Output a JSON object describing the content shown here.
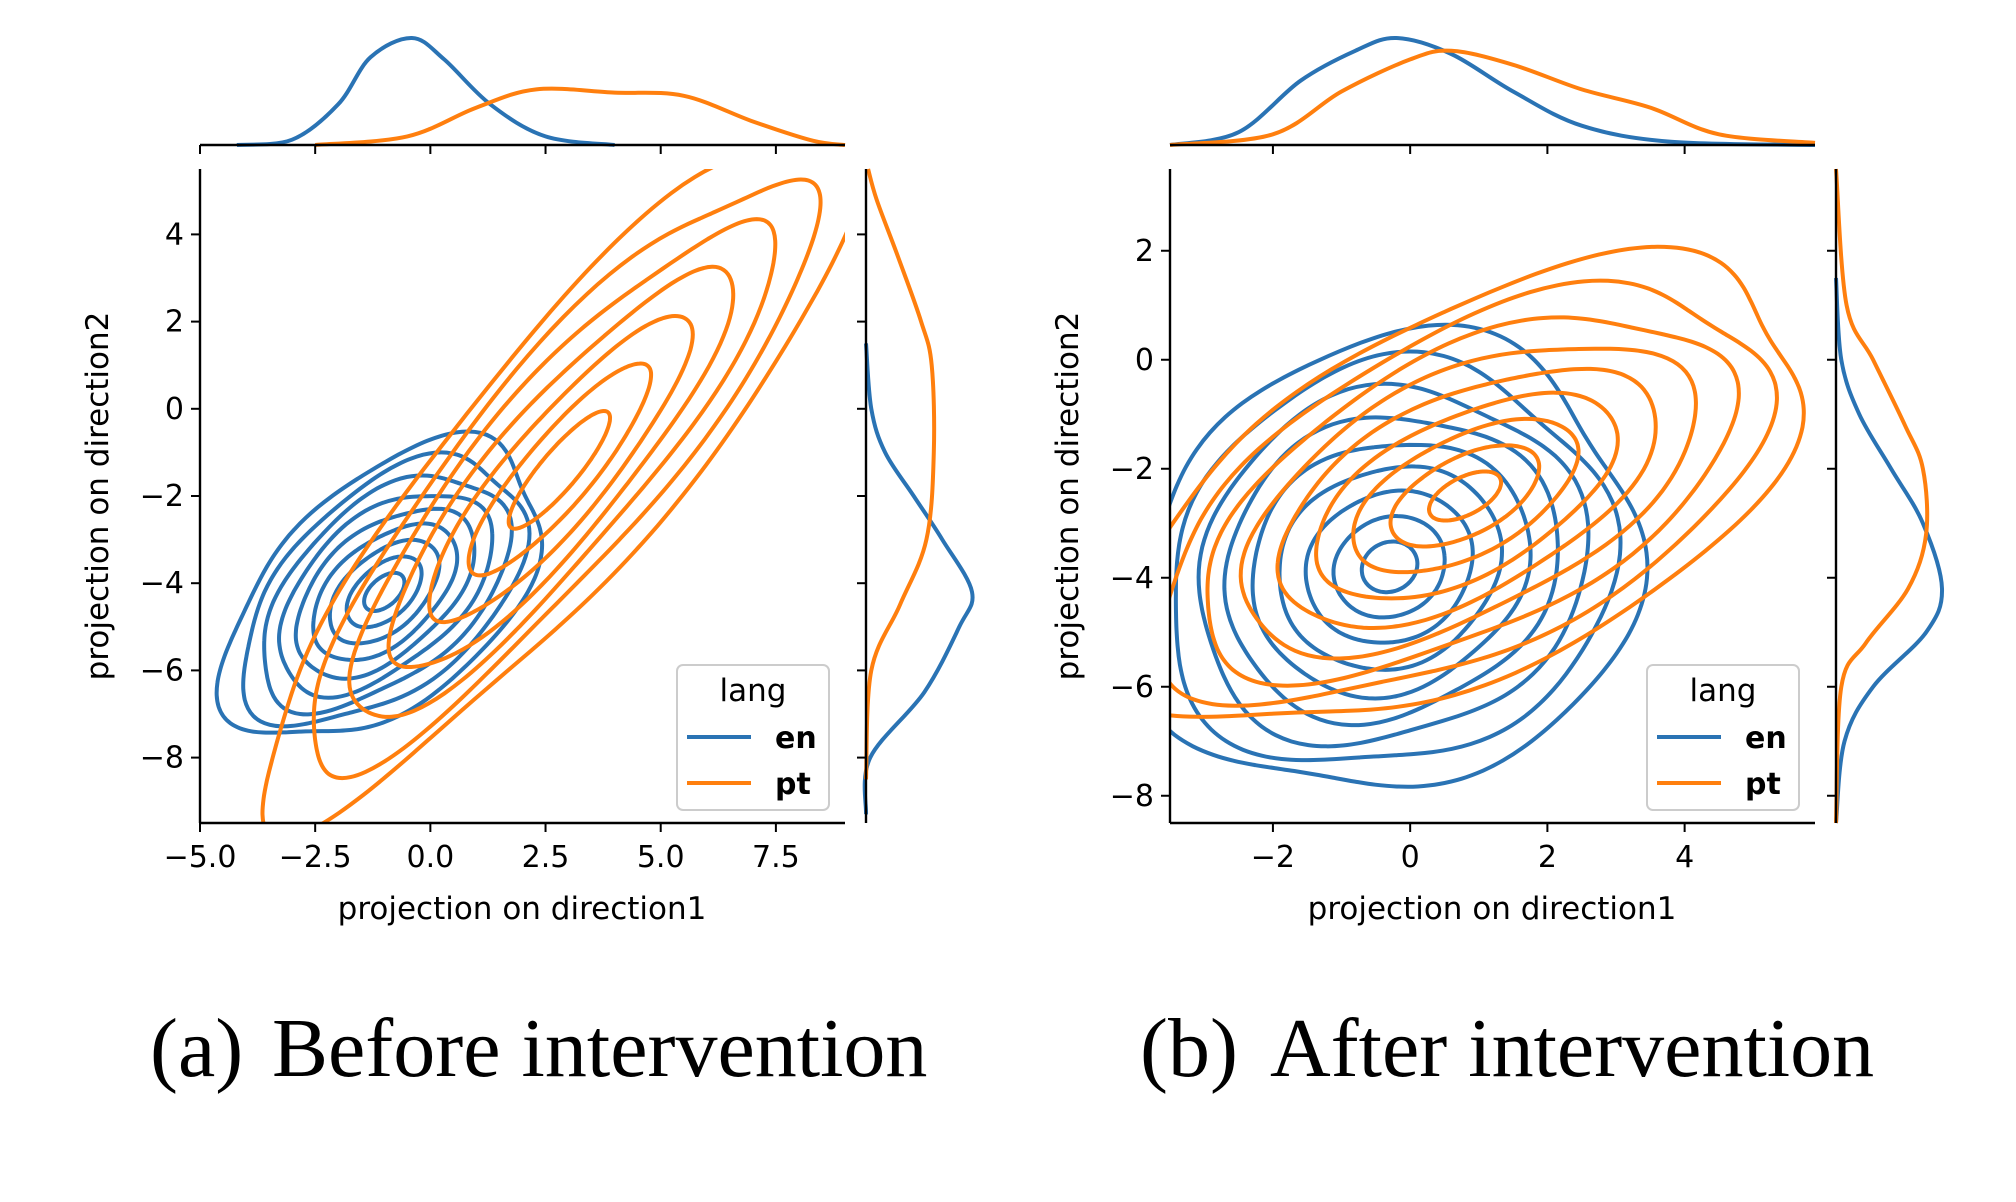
{
  "colors": {
    "en": "#2a73b4",
    "pt": "#ff7f0e"
  },
  "chart_data": [
    {
      "type": "contour",
      "caption_label": "(a)",
      "caption_text": "Before intervention",
      "xlabel": "projection on direction1",
      "ylabel": "projection on direction2",
      "xlim": [
        -5.0,
        9.0
      ],
      "ylim": [
        -9.5,
        5.5
      ],
      "xticks": [
        -5.0,
        -2.5,
        0.0,
        2.5,
        5.0,
        7.5
      ],
      "xtick_labels": [
        "−5.0",
        "−2.5",
        "0.0",
        "2.5",
        "5.0",
        "7.5"
      ],
      "yticks": [
        -8,
        -6,
        -4,
        -2,
        0,
        2,
        4
      ],
      "ytick_labels": [
        "−8",
        "−6",
        "−4",
        "−2",
        "0",
        "2",
        "4"
      ],
      "legend": {
        "title": "lang",
        "location": "lower right",
        "entries": [
          "en",
          "pt"
        ]
      },
      "series": [
        {
          "name": "en",
          "center": [
            -1.0,
            -4.2
          ],
          "sd": [
            1.25,
            1.25
          ],
          "rho": 0.5,
          "levels": 9,
          "spread": [
            0.35,
            2.75
          ],
          "marginal_x": [
            [
              -4.2,
              0.0
            ],
            [
              -3.0,
              0.05
            ],
            [
              -2.0,
              0.38
            ],
            [
              -1.3,
              0.82
            ],
            [
              -0.4,
              1.0
            ],
            [
              0.3,
              0.8
            ],
            [
              1.3,
              0.38
            ],
            [
              2.5,
              0.08
            ],
            [
              4.0,
              0.0
            ]
          ],
          "marginal_y": [
            [
              -9.3,
              0.0
            ],
            [
              -8.0,
              0.04
            ],
            [
              -6.5,
              0.55
            ],
            [
              -5.0,
              0.88
            ],
            [
              -4.2,
              1.0
            ],
            [
              -3.0,
              0.72
            ],
            [
              -2.0,
              0.45
            ],
            [
              -1.0,
              0.18
            ],
            [
              0.0,
              0.05
            ],
            [
              1.5,
              0.0
            ]
          ]
        },
        {
          "name": "pt",
          "center": [
            2.8,
            -1.4
          ],
          "sd": [
            2.2,
            2.7
          ],
          "rho": 0.88,
          "levels": 7,
          "spread": [
            0.5,
            2.9
          ],
          "marginal_x": [
            [
              -2.5,
              0.0
            ],
            [
              -0.5,
              0.08
            ],
            [
              1.0,
              0.35
            ],
            [
              2.3,
              0.52
            ],
            [
              4.0,
              0.49
            ],
            [
              5.5,
              0.46
            ],
            [
              7.0,
              0.22
            ],
            [
              8.3,
              0.04
            ],
            [
              9.0,
              0.0
            ]
          ],
          "marginal_y": [
            [
              -8.5,
              0.0
            ],
            [
              -6.0,
              0.05
            ],
            [
              -4.5,
              0.32
            ],
            [
              -3.0,
              0.57
            ],
            [
              -1.0,
              0.64
            ],
            [
              1.0,
              0.62
            ],
            [
              2.0,
              0.52
            ],
            [
              3.5,
              0.3
            ],
            [
              4.8,
              0.1
            ],
            [
              5.5,
              0.02
            ]
          ]
        }
      ]
    },
    {
      "type": "contour",
      "caption_label": "(b)",
      "caption_text": "After intervention",
      "xlabel": "projection on direction1",
      "ylabel": "projection on direction2",
      "xlim": [
        -3.5,
        5.9
      ],
      "ylim": [
        -8.5,
        3.5
      ],
      "xticks": [
        -2,
        0,
        2,
        4
      ],
      "xtick_labels": [
        "−2",
        "0",
        "2",
        "4"
      ],
      "yticks": [
        -8,
        -6,
        -4,
        -2,
        0,
        2
      ],
      "ytick_labels": [
        "−8",
        "−6",
        "−4",
        "−2",
        "0",
        "2"
      ],
      "legend": {
        "title": "lang",
        "location": "lower right",
        "entries": [
          "en",
          "pt"
        ]
      },
      "series": [
        {
          "name": "en",
          "center": [
            -0.3,
            -3.8
          ],
          "sd": [
            1.35,
            1.55
          ],
          "rho": 0.12,
          "levels": 9,
          "spread": [
            0.3,
            2.7
          ],
          "marginal_x": [
            [
              -3.5,
              0.0
            ],
            [
              -2.5,
              0.12
            ],
            [
              -1.6,
              0.6
            ],
            [
              -0.8,
              0.88
            ],
            [
              -0.2,
              1.0
            ],
            [
              0.6,
              0.85
            ],
            [
              1.5,
              0.5
            ],
            [
              2.5,
              0.18
            ],
            [
              3.8,
              0.03
            ],
            [
              5.9,
              0.0
            ]
          ],
          "marginal_y": [
            [
              -8.5,
              0.0
            ],
            [
              -7.0,
              0.08
            ],
            [
              -6.0,
              0.35
            ],
            [
              -5.0,
              0.85
            ],
            [
              -4.2,
              1.0
            ],
            [
              -3.0,
              0.82
            ],
            [
              -2.0,
              0.52
            ],
            [
              -1.0,
              0.22
            ],
            [
              0.0,
              0.05
            ],
            [
              1.5,
              0.0
            ]
          ]
        },
        {
          "name": "pt",
          "center": [
            0.8,
            -2.5
          ],
          "sd": [
            1.75,
            1.5
          ],
          "rho": 0.55,
          "levels": 9,
          "spread": [
            0.3,
            2.85
          ],
          "marginal_x": [
            [
              -3.5,
              0.0
            ],
            [
              -2.0,
              0.1
            ],
            [
              -1.0,
              0.5
            ],
            [
              0.0,
              0.8
            ],
            [
              0.6,
              0.88
            ],
            [
              1.5,
              0.75
            ],
            [
              2.5,
              0.52
            ],
            [
              3.5,
              0.35
            ],
            [
              4.5,
              0.1
            ],
            [
              5.9,
              0.02
            ]
          ],
          "marginal_y": [
            [
              -8.5,
              0.0
            ],
            [
              -6.0,
              0.05
            ],
            [
              -5.2,
              0.28
            ],
            [
              -4.2,
              0.68
            ],
            [
              -3.2,
              0.85
            ],
            [
              -2.0,
              0.82
            ],
            [
              -1.2,
              0.65
            ],
            [
              0.0,
              0.35
            ],
            [
              1.0,
              0.1
            ],
            [
              3.5,
              0.0
            ]
          ]
        }
      ]
    }
  ]
}
